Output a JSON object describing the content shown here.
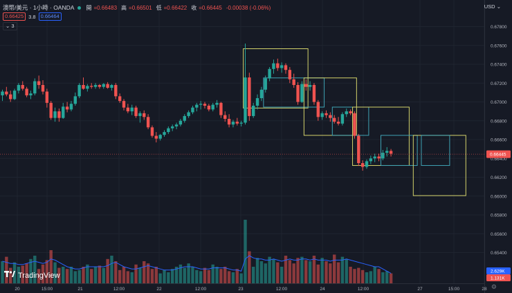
{
  "header": {
    "symbol": "澳幣/美元 · 1小時 · OANDA",
    "open_label": "開",
    "open_value": "=0.66483",
    "high_label": "高",
    "high_value": "=0.66501",
    "low_label": "低",
    "low_value": "=0.66422",
    "close_label": "收",
    "close_value": "=0.66445",
    "change": "-0.00038 (-0.06%)",
    "bid": "0.66425",
    "spread": "3.8",
    "ask": "0.66464",
    "indicator_toggle": "3",
    "currency": "USD"
  },
  "brand": {
    "logo_mark": "17",
    "name": "TradingView"
  },
  "colors": {
    "up": "#26a69a",
    "down": "#ef5350",
    "background": "#161a25",
    "box_yellow": "#d4d36b",
    "box_cyan": "#3fa3b4",
    "volume_ma": "#2962ff"
  },
  "chart_data": {
    "type": "candlestick",
    "interval": "1 hour",
    "y_ticks": [
      "0.67800",
      "0.67600",
      "0.67400",
      "0.67200",
      "0.67000",
      "0.66800",
      "0.66600",
      "0.66400",
      "0.66200",
      "0.66000",
      "0.65800",
      "0.65600",
      "0.65400"
    ],
    "x_ticks": [
      "20",
      "15:00",
      "21",
      "12:00",
      "22",
      "12:00",
      "23",
      "12:00",
      "24",
      "12:00",
      "27",
      "15:00",
      "28"
    ],
    "last_price": "0.66445",
    "volume_labels": [
      "2.629K",
      "1.131K"
    ],
    "ohlc": [
      [
        0.6707,
        0.6713,
        0.6701,
        0.6711
      ],
      [
        0.6711,
        0.6716,
        0.6706,
        0.6708
      ],
      [
        0.6708,
        0.6712,
        0.67,
        0.6703
      ],
      [
        0.6703,
        0.6714,
        0.6702,
        0.6712
      ],
      [
        0.6712,
        0.672,
        0.6709,
        0.6718
      ],
      [
        0.6718,
        0.6722,
        0.6712,
        0.6714
      ],
      [
        0.6714,
        0.6716,
        0.6705,
        0.6707
      ],
      [
        0.6707,
        0.6712,
        0.6703,
        0.6709
      ],
      [
        0.6709,
        0.6725,
        0.6707,
        0.6722
      ],
      [
        0.6722,
        0.6728,
        0.6714,
        0.6718
      ],
      [
        0.6718,
        0.6723,
        0.6708,
        0.6711
      ],
      [
        0.6711,
        0.6714,
        0.6694,
        0.6699
      ],
      [
        0.6699,
        0.6701,
        0.6681,
        0.6683
      ],
      [
        0.6683,
        0.6694,
        0.6679,
        0.669
      ],
      [
        0.669,
        0.6693,
        0.6679,
        0.6683
      ],
      [
        0.6683,
        0.6699,
        0.6682,
        0.6695
      ],
      [
        0.6695,
        0.67,
        0.6689,
        0.6692
      ],
      [
        0.6692,
        0.6701,
        0.669,
        0.6698
      ],
      [
        0.6698,
        0.671,
        0.6696,
        0.6706
      ],
      [
        0.6706,
        0.672,
        0.6704,
        0.6718
      ],
      [
        0.6718,
        0.6726,
        0.6713,
        0.6714
      ],
      [
        0.6714,
        0.6719,
        0.6711,
        0.6717
      ],
      [
        0.6717,
        0.672,
        0.6714,
        0.6716
      ],
      [
        0.6716,
        0.672,
        0.6714,
        0.6718
      ],
      [
        0.6718,
        0.6719,
        0.6714,
        0.6716
      ],
      [
        0.6716,
        0.672,
        0.6714,
        0.6719
      ],
      [
        0.6719,
        0.6721,
        0.6714,
        0.6715
      ],
      [
        0.6715,
        0.6719,
        0.6712,
        0.6718
      ],
      [
        0.6718,
        0.672,
        0.6703,
        0.6706
      ],
      [
        0.6706,
        0.6709,
        0.6699,
        0.6701
      ],
      [
        0.6701,
        0.6703,
        0.6691,
        0.6694
      ],
      [
        0.6694,
        0.6698,
        0.6688,
        0.669
      ],
      [
        0.669,
        0.6697,
        0.6686,
        0.6694
      ],
      [
        0.6694,
        0.6696,
        0.6683,
        0.6685
      ],
      [
        0.6685,
        0.669,
        0.6678,
        0.6688
      ],
      [
        0.6688,
        0.6691,
        0.6681,
        0.6684
      ],
      [
        0.6684,
        0.6687,
        0.6671,
        0.6673
      ],
      [
        0.6673,
        0.6675,
        0.6662,
        0.6664
      ],
      [
        0.6664,
        0.6668,
        0.6657,
        0.6661
      ],
      [
        0.6661,
        0.6666,
        0.6659,
        0.6665
      ],
      [
        0.6665,
        0.667,
        0.6663,
        0.6668
      ],
      [
        0.6668,
        0.6674,
        0.6666,
        0.6672
      ],
      [
        0.6672,
        0.6676,
        0.6669,
        0.6674
      ],
      [
        0.6674,
        0.6678,
        0.6671,
        0.6676
      ],
      [
        0.6676,
        0.6682,
        0.6674,
        0.668
      ],
      [
        0.668,
        0.6687,
        0.6678,
        0.6685
      ],
      [
        0.6685,
        0.6691,
        0.6683,
        0.6689
      ],
      [
        0.6689,
        0.6696,
        0.6687,
        0.6694
      ],
      [
        0.6694,
        0.6699,
        0.669,
        0.6697
      ],
      [
        0.6697,
        0.6701,
        0.6692,
        0.6698
      ],
      [
        0.6698,
        0.67,
        0.6693,
        0.6696
      ],
      [
        0.6696,
        0.6698,
        0.669,
        0.6692
      ],
      [
        0.6692,
        0.6699,
        0.669,
        0.6697
      ],
      [
        0.6697,
        0.6702,
        0.6694,
        0.6699
      ],
      [
        0.6699,
        0.67,
        0.6683,
        0.6686
      ],
      [
        0.6686,
        0.669,
        0.6679,
        0.6682
      ],
      [
        0.6682,
        0.6687,
        0.6673,
        0.6676
      ],
      [
        0.6676,
        0.6681,
        0.6673,
        0.6679
      ],
      [
        0.6679,
        0.6683,
        0.6675,
        0.6677
      ],
      [
        0.6677,
        0.668,
        0.6674,
        0.6678
      ],
      [
        0.6678,
        0.6762,
        0.6676,
        0.6726
      ],
      [
        0.6726,
        0.6731,
        0.668,
        0.6685
      ],
      [
        0.6685,
        0.6699,
        0.6683,
        0.6696
      ],
      [
        0.6696,
        0.6708,
        0.6692,
        0.6704
      ],
      [
        0.6704,
        0.6716,
        0.6701,
        0.6713
      ],
      [
        0.6713,
        0.6728,
        0.671,
        0.6725
      ],
      [
        0.6725,
        0.6737,
        0.6722,
        0.6735
      ],
      [
        0.6735,
        0.6745,
        0.673,
        0.6741
      ],
      [
        0.6741,
        0.6746,
        0.6733,
        0.6736
      ],
      [
        0.6736,
        0.6742,
        0.6731,
        0.6739
      ],
      [
        0.6739,
        0.6741,
        0.673,
        0.6734
      ],
      [
        0.6734,
        0.6737,
        0.672,
        0.6724
      ],
      [
        0.6724,
        0.673,
        0.6715,
        0.6718
      ],
      [
        0.6718,
        0.6721,
        0.6697,
        0.67
      ],
      [
        0.67,
        0.6722,
        0.6699,
        0.6719
      ],
      [
        0.6719,
        0.6724,
        0.6712,
        0.6716
      ],
      [
        0.6716,
        0.6722,
        0.6712,
        0.6718
      ],
      [
        0.6718,
        0.672,
        0.6697,
        0.67
      ],
      [
        0.67,
        0.6702,
        0.668,
        0.6684
      ],
      [
        0.6684,
        0.669,
        0.6681,
        0.6688
      ],
      [
        0.6688,
        0.6691,
        0.6683,
        0.6686
      ],
      [
        0.6686,
        0.6689,
        0.6679,
        0.6683
      ],
      [
        0.6683,
        0.6686,
        0.6677,
        0.6679
      ],
      [
        0.6679,
        0.6684,
        0.6675,
        0.6677
      ],
      [
        0.6677,
        0.6689,
        0.6675,
        0.6687
      ],
      [
        0.6687,
        0.6693,
        0.6684,
        0.669
      ],
      [
        0.669,
        0.6692,
        0.6686,
        0.6688
      ],
      [
        0.6688,
        0.669,
        0.6661,
        0.6664
      ],
      [
        0.6664,
        0.6666,
        0.6632,
        0.6635
      ],
      [
        0.6635,
        0.6638,
        0.6627,
        0.6631
      ],
      [
        0.6631,
        0.6639,
        0.6629,
        0.6637
      ],
      [
        0.6637,
        0.6643,
        0.6634,
        0.664
      ],
      [
        0.664,
        0.6645,
        0.6636,
        0.6642
      ],
      [
        0.6642,
        0.6645,
        0.6637,
        0.664
      ],
      [
        0.664,
        0.6649,
        0.6638,
        0.6646
      ],
      [
        0.6646,
        0.6652,
        0.6642,
        0.6648
      ],
      [
        0.6648,
        0.665,
        0.6642,
        0.6645
      ]
    ],
    "volumes": [
      40,
      48,
      28,
      38,
      30,
      32,
      36,
      44,
      50,
      26,
      34,
      42,
      60,
      38,
      28,
      30,
      26,
      30,
      22,
      24,
      30,
      34,
      26,
      30,
      32,
      28,
      44,
      50,
      40,
      24,
      30,
      22,
      20,
      34,
      28,
      40,
      36,
      26,
      30,
      18,
      24,
      20,
      26,
      30,
      34,
      28,
      36,
      30,
      24,
      22,
      28,
      24,
      34,
      30,
      26,
      30,
      22,
      20,
      26,
      18,
      115,
      58,
      30,
      46,
      40,
      36,
      48,
      44,
      38,
      30,
      50,
      42,
      36,
      46,
      48,
      42,
      40,
      50,
      34,
      46,
      40,
      36,
      52,
      38,
      48,
      44,
      30,
      26,
      28,
      24,
      20,
      22,
      30,
      26,
      20,
      22,
      18
    ],
    "volume_ma": [
      40,
      38,
      36,
      36,
      34,
      34,
      36,
      38,
      40,
      38,
      36,
      38,
      44,
      42,
      38,
      34,
      30,
      28,
      26,
      26,
      28,
      30,
      30,
      30,
      30,
      30,
      32,
      36,
      38,
      34,
      30,
      28,
      26,
      26,
      28,
      30,
      32,
      30,
      28,
      26,
      24,
      24,
      24,
      26,
      28,
      30,
      30,
      30,
      28,
      26,
      26,
      26,
      28,
      28,
      28,
      28,
      26,
      24,
      24,
      22,
      44,
      50,
      46,
      44,
      44,
      42,
      42,
      44,
      42,
      40,
      42,
      44,
      42,
      42,
      44,
      44,
      42,
      44,
      42,
      42,
      42,
      40,
      42,
      42,
      42,
      44,
      42,
      40,
      38,
      36,
      34,
      32,
      30,
      30,
      26,
      22,
      18
    ],
    "boxes": [
      {
        "color": "yellow",
        "t0": 60,
        "t1": 75,
        "p0": 0.67565,
        "p1": 0.66935
      },
      {
        "color": "cyan",
        "t0": 65,
        "t1": 79,
        "p0": 0.67255,
        "p1": 0.66945
      },
      {
        "color": "yellow",
        "t0": 75,
        "t1": 87,
        "p0": 0.67255,
        "p1": 0.66645
      },
      {
        "color": "cyan",
        "t0": 82,
        "t1": 90,
        "p0": 0.66945,
        "p1": 0.66645
      },
      {
        "color": "yellow",
        "t0": 87,
        "t1": 100,
        "p0": 0.66945,
        "p1": 0.66325
      },
      {
        "color": "cyan",
        "t0": 94,
        "t1": 102,
        "p0": 0.66645,
        "p1": 0.66325
      },
      {
        "color": "yellow",
        "t0": 102,
        "t1": 114,
        "p0": 0.66645,
        "p1": 0.66005
      },
      {
        "color": "cyan",
        "t0": 104,
        "t1": 110,
        "p0": 0.66645,
        "p1": 0.66325
      }
    ]
  }
}
